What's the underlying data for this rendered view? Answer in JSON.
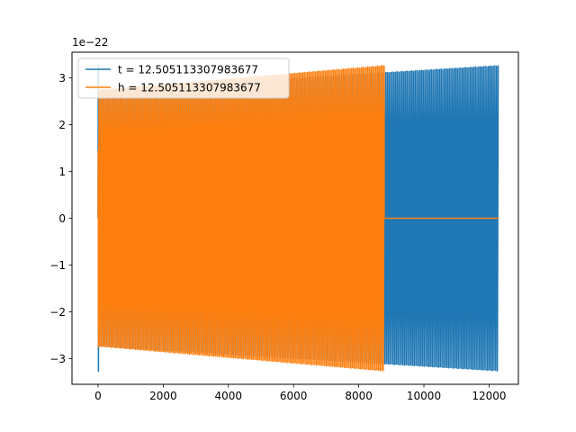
{
  "chart_data": {
    "type": "line",
    "title": "",
    "xlabel": "",
    "ylabel": "",
    "y_multiplier_label": "1e−22",
    "xlim": [
      -800,
      12900
    ],
    "ylim": [
      -3.55,
      3.55
    ],
    "x_ticks": [
      0,
      2000,
      4000,
      6000,
      8000,
      10000,
      12000
    ],
    "x_tick_labels": [
      "0",
      "2000",
      "4000",
      "6000",
      "8000",
      "10000",
      "12000"
    ],
    "y_ticks": [
      -3,
      -2,
      -1,
      0,
      1,
      2,
      3
    ],
    "y_tick_labels": [
      "−3",
      "−2",
      "−1",
      "0",
      "1",
      "2",
      "3"
    ],
    "grid": false,
    "legend_position": "upper-left",
    "series": [
      {
        "name": "t = 12.505113307983677",
        "color": "#1f77b4",
        "x_range": [
          0,
          12300
        ],
        "envelope_start": 2.75,
        "envelope_end": 3.28,
        "initial_peak": 3.28,
        "value_after_end": null
      },
      {
        "name": "h = 12.505113307983677",
        "color": "#ff7f0e",
        "x_range": [
          0,
          8780
        ],
        "envelope_start": 2.75,
        "envelope_end": 3.28,
        "initial_peak": 1.45,
        "value_after_end": 0,
        "flat_until": 12300
      }
    ]
  }
}
